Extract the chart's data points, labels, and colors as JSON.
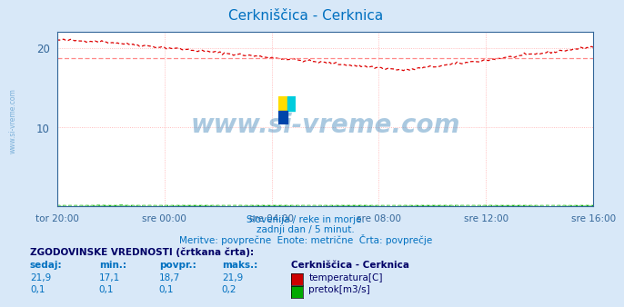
{
  "title": "Cerkniščica - Cerknica",
  "title_color": "#0070c0",
  "bg_color": "#d8e8f8",
  "plot_bg_color": "#ffffff",
  "grid_color": "#ffaaaa",
  "x_tick_labels": [
    "tor 20:00",
    "sre 00:00",
    "sre 04:00",
    "sre 08:00",
    "sre 12:00",
    "sre 16:00"
  ],
  "x_tick_positions": [
    0,
    4,
    8,
    12,
    16,
    20
  ],
  "ylim_temp": [
    0,
    22
  ],
  "yticks_temp": [
    10,
    20
  ],
  "temp_avg": 18.7,
  "temp_min": 17.1,
  "temp_max": 21.9,
  "temp_current": 21.9,
  "flow_avg": 0.1,
  "flow_min": 0.1,
  "flow_max": 0.2,
  "flow_current": 0.1,
  "temp_line_color": "#dd0000",
  "temp_avg_line_color": "#ff8888",
  "flow_line_color": "#00aa00",
  "flow_avg_line_color": "#88dd88",
  "watermark_text": "www.si-vreme.com",
  "watermark_color": "#4488bb",
  "watermark_alpha": 0.45,
  "subtitle1": "Slovenija / reke in morje.",
  "subtitle2": "zadnji dan / 5 minut.",
  "subtitle3": "Meritve: povprečne  Enote: metrične  Črta: povprečje",
  "subtitle_color": "#0070c0",
  "table_header": "ZGODOVINSKE VREDNOSTI (črtkana črta):",
  "col_headers": [
    "sedaj:",
    "min.:",
    "povpr.:",
    "maks.:"
  ],
  "col_header_color": "#0070c0",
  "station_label": "Cerkniščica - Cerknica",
  "row1_label": "temperatura[C]",
  "row2_label": "pretok[m3/s]",
  "row1_vals": [
    "21,9",
    "17,1",
    "18,7",
    "21,9"
  ],
  "row2_vals": [
    "0,1",
    "0,1",
    "0,1",
    "0,2"
  ],
  "row1_color": "#cc0000",
  "row2_color": "#00aa00",
  "side_label": "www.si-vreme.com",
  "side_label_color": "#5599cc",
  "axis_color": "#336699",
  "spine_color": "#336699"
}
